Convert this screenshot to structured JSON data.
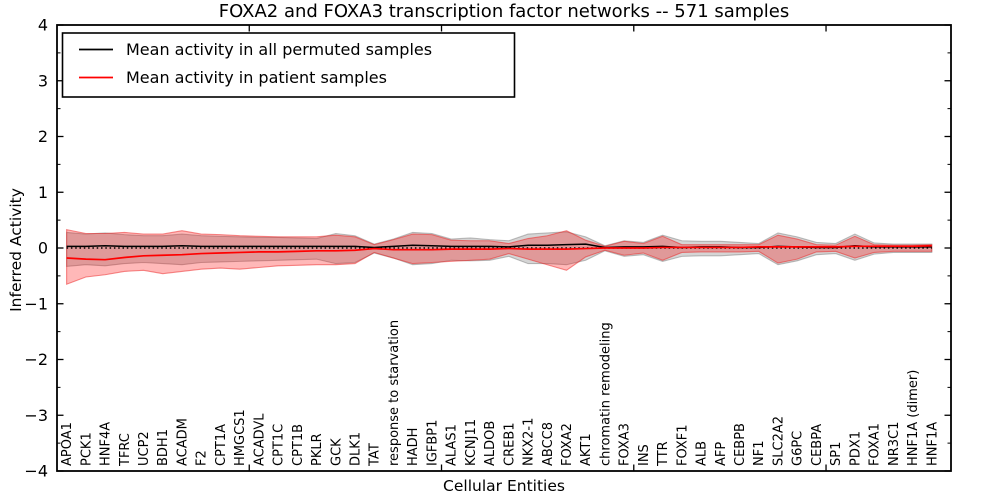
{
  "figure": {
    "title": "FOXA2 and FOXA3 transcription factor networks -- 571 samples",
    "xlabel": "Cellular Entities",
    "ylabel": "Inferred Activity"
  },
  "legend": {
    "position": "upper left",
    "entries": [
      {
        "label": "Mean activity in all permuted samples",
        "color": "#000000"
      },
      {
        "label": "Mean activity in patient samples",
        "color": "#ff0000"
      }
    ]
  },
  "colors": {
    "permuted_line": "#000000",
    "patient_line": "#ff0000",
    "permuted_band_fill": "rgba(115,115,115,0.30)",
    "permuted_band_edge": "rgba(100,100,100,0.40)",
    "patient_band_fill": "rgba(255,0,0,0.28)",
    "patient_band_edge": "rgba(235,30,30,0.50)",
    "zero_line": "#000000",
    "frame": "#000000"
  },
  "chart_data": {
    "type": "line",
    "title": "FOXA2 and FOXA3 transcription factor networks -- 571 samples",
    "xlabel": "Cellular Entities",
    "ylabel": "Inferred Activity",
    "ylim": [
      -4,
      4
    ],
    "yticks": [
      -4,
      -3,
      -2,
      -1,
      0,
      1,
      2,
      3,
      4
    ],
    "y_minor_step": 0.5,
    "xticks": [
      10,
      20,
      30,
      40
    ],
    "grid": false,
    "legend_position": "upper left",
    "zero_reference_line": {
      "y": 0,
      "style": "dotted",
      "color": "#000000"
    },
    "categories": [
      "APOA1",
      "PCK1",
      "HNF4A",
      "TFRC",
      "UCP2",
      "BDH1",
      "ACADM",
      "F2",
      "CPT1A",
      "HMGCS1",
      "ACADVL",
      "CPT1C",
      "CPT1B",
      "PKLR",
      "GCK",
      "DLK1",
      "TAT",
      "response to starvation",
      "HADH",
      "IGFBP1",
      "ALAS1",
      "KCNJ11",
      "ALDOB",
      "CREB1",
      "NKX2-1",
      "ABCC8",
      "FOXA2",
      "AKT1",
      "chromatin remodeling",
      "FOXA3",
      "INS",
      "TTR",
      "FOXF1",
      "ALB",
      "AFP",
      "CEBPB",
      "NF1",
      "SLC2A2",
      "G6PC",
      "CEBPA",
      "SP1",
      "PDX1",
      "FOXA1",
      "NR3C1",
      "HNF1A (dimer)",
      "HNF1A"
    ],
    "series": [
      {
        "name": "Mean activity in all permuted samples",
        "kind": "line",
        "color": "#000000",
        "values": [
          0.03,
          0.03,
          0.04,
          0.03,
          0.03,
          0.03,
          0.04,
          0.03,
          0.03,
          0.03,
          0.03,
          0.03,
          0.03,
          0.03,
          0.03,
          0.03,
          0.01,
          0.03,
          0.05,
          0.04,
          0.03,
          0.03,
          0.03,
          0.02,
          0.05,
          0.05,
          0.06,
          0.07,
          0.01,
          0.02,
          0.02,
          0.03,
          0.01,
          0.02,
          0.02,
          0.01,
          0.01,
          0.03,
          0.02,
          0.01,
          0.01,
          0.04,
          0.02,
          0.02,
          0.02,
          0.02
        ]
      },
      {
        "name": "Mean activity in patient samples",
        "kind": "line",
        "color": "#ff0000",
        "values": [
          -0.18,
          -0.2,
          -0.21,
          -0.17,
          -0.14,
          -0.13,
          -0.12,
          -0.1,
          -0.09,
          -0.08,
          -0.07,
          -0.07,
          -0.06,
          -0.05,
          -0.05,
          -0.04,
          -0.01,
          -0.03,
          -0.03,
          -0.03,
          -0.02,
          -0.02,
          -0.02,
          -0.01,
          -0.02,
          -0.02,
          -0.02,
          -0.01,
          0.0,
          0.0,
          0.0,
          0.01,
          0.01,
          0.01,
          0.01,
          0.01,
          0.02,
          0.02,
          0.02,
          0.02,
          0.02,
          0.03,
          0.03,
          0.03,
          0.03,
          0.04
        ]
      },
      {
        "name": "Permuted samples band",
        "kind": "band",
        "color": "rgba(115,115,115,0.30)",
        "hi": [
          0.28,
          0.25,
          0.27,
          0.24,
          0.22,
          0.22,
          0.25,
          0.22,
          0.21,
          0.2,
          0.19,
          0.19,
          0.18,
          0.17,
          0.26,
          0.22,
          0.07,
          0.16,
          0.28,
          0.26,
          0.16,
          0.18,
          0.15,
          0.13,
          0.25,
          0.27,
          0.29,
          0.2,
          0.04,
          0.13,
          0.1,
          0.23,
          0.13,
          0.12,
          0.12,
          0.1,
          0.08,
          0.27,
          0.2,
          0.1,
          0.08,
          0.25,
          0.09,
          0.07,
          0.07,
          0.07
        ],
        "lo": [
          -0.33,
          -0.3,
          -0.32,
          -0.28,
          -0.26,
          -0.28,
          -0.3,
          -0.26,
          -0.25,
          -0.24,
          -0.23,
          -0.22,
          -0.21,
          -0.2,
          -0.28,
          -0.26,
          -0.09,
          -0.18,
          -0.3,
          -0.28,
          -0.22,
          -0.23,
          -0.22,
          -0.15,
          -0.28,
          -0.28,
          -0.3,
          -0.22,
          -0.05,
          -0.15,
          -0.12,
          -0.24,
          -0.15,
          -0.14,
          -0.14,
          -0.12,
          -0.1,
          -0.3,
          -0.23,
          -0.12,
          -0.1,
          -0.22,
          -0.11,
          -0.08,
          -0.08,
          -0.08
        ]
      },
      {
        "name": "Patient samples band",
        "kind": "band",
        "color": "rgba(255,0,0,0.28)",
        "hi": [
          0.33,
          0.26,
          0.26,
          0.28,
          0.25,
          0.25,
          0.31,
          0.25,
          0.24,
          0.22,
          0.21,
          0.2,
          0.2,
          0.2,
          0.23,
          0.2,
          0.06,
          0.15,
          0.25,
          0.24,
          0.14,
          0.13,
          0.13,
          0.08,
          0.17,
          0.22,
          0.31,
          0.14,
          0.03,
          0.12,
          0.08,
          0.21,
          0.06,
          0.06,
          0.06,
          0.06,
          0.06,
          0.23,
          0.16,
          0.06,
          0.05,
          0.21,
          0.06,
          0.05,
          0.05,
          0.06
        ],
        "lo": [
          -0.65,
          -0.52,
          -0.48,
          -0.42,
          -0.4,
          -0.46,
          -0.42,
          -0.38,
          -0.36,
          -0.38,
          -0.35,
          -0.32,
          -0.31,
          -0.3,
          -0.3,
          -0.28,
          -0.08,
          -0.18,
          -0.28,
          -0.26,
          -0.24,
          -0.22,
          -0.2,
          -0.1,
          -0.2,
          -0.3,
          -0.4,
          -0.16,
          -0.04,
          -0.13,
          -0.09,
          -0.22,
          -0.08,
          -0.07,
          -0.07,
          -0.07,
          -0.06,
          -0.27,
          -0.2,
          -0.07,
          -0.06,
          -0.18,
          -0.08,
          -0.06,
          -0.06,
          -0.06
        ]
      }
    ]
  }
}
